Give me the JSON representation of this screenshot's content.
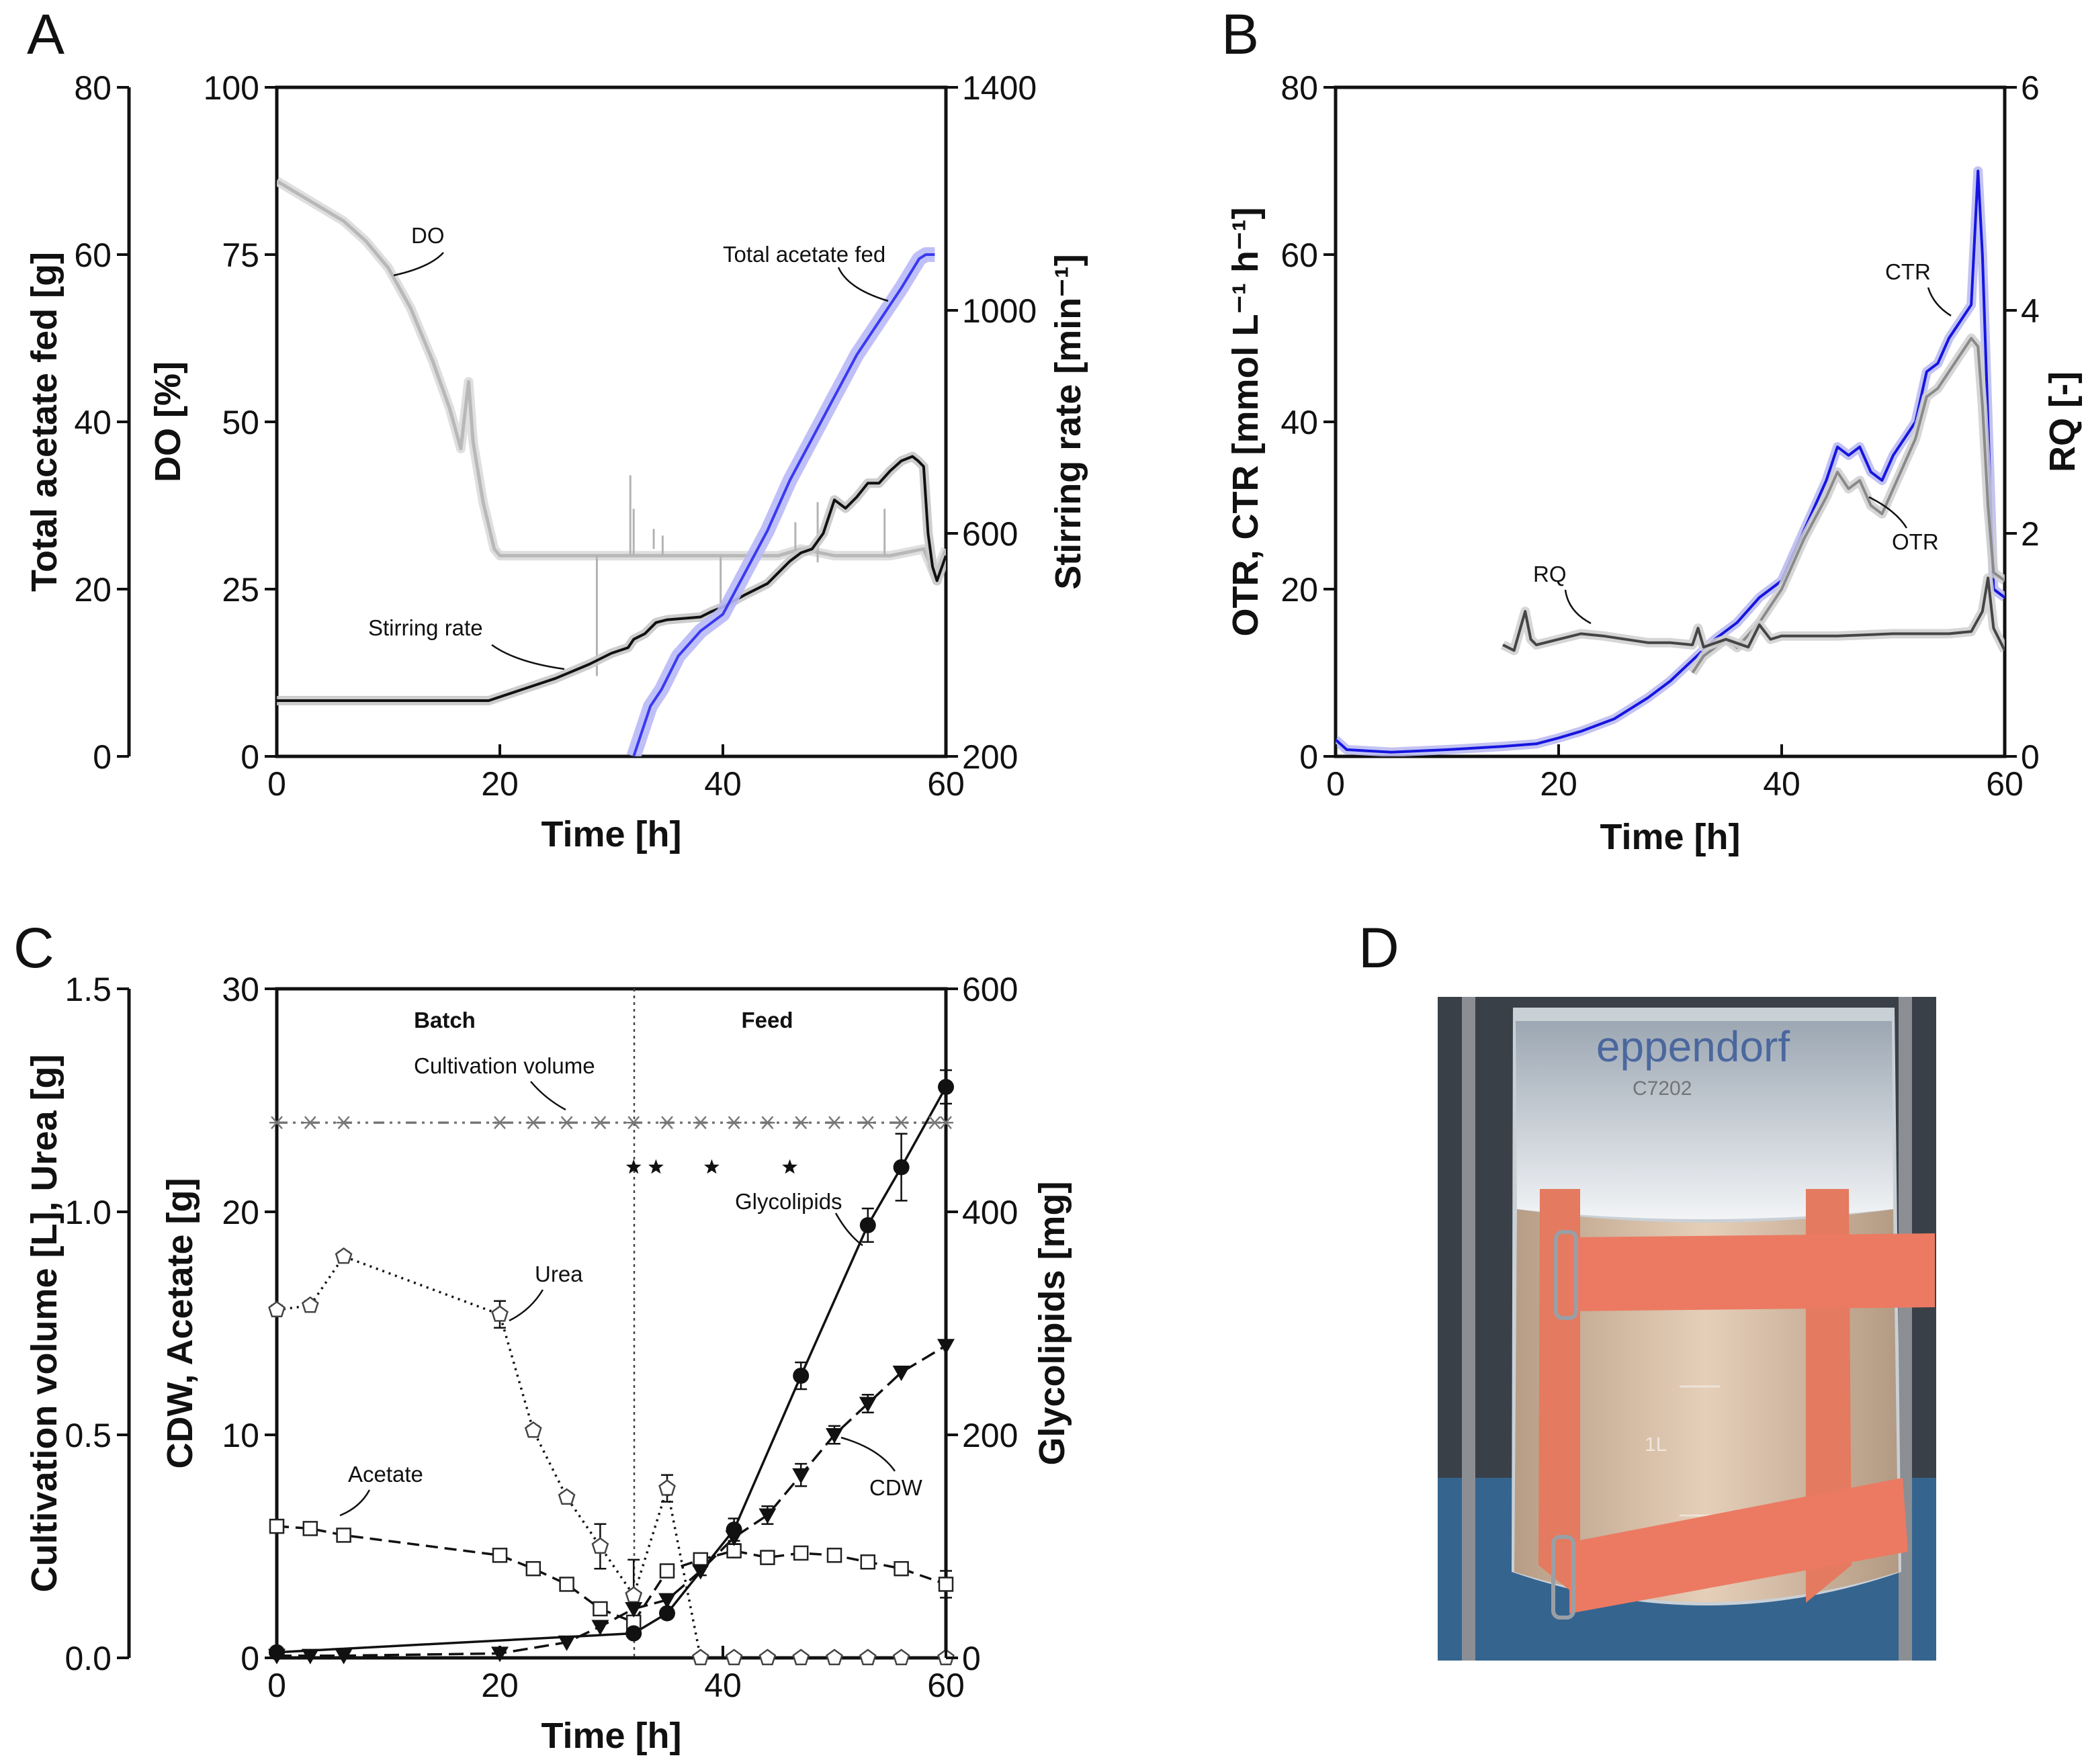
{
  "figure": {
    "letters": [
      "A",
      "B",
      "C",
      "D"
    ]
  },
  "chart_data": [
    {
      "id": "A",
      "type": "line",
      "xlabel": "Time [h]",
      "xlim": [
        0,
        60
      ],
      "xticks": [
        0,
        20,
        40,
        60
      ],
      "axes": [
        {
          "side": "outer-left",
          "label": "Total acetate fed [g]",
          "lim": [
            0,
            80
          ],
          "ticks": [
            0,
            20,
            40,
            60,
            80
          ]
        },
        {
          "side": "left",
          "label": "DO [%]",
          "lim": [
            0,
            100
          ],
          "ticks": [
            0,
            25,
            50,
            75,
            100
          ]
        },
        {
          "side": "right",
          "label": "Stirring rate [min⁻¹]",
          "lim": [
            200,
            1400
          ],
          "ticks": [
            200,
            600,
            1000,
            1400
          ]
        }
      ],
      "series": [
        {
          "name": "DO",
          "axis": 1,
          "color": "#b8b8b8",
          "points": [
            [
              0,
              86
            ],
            [
              2,
              84
            ],
            [
              4,
              82
            ],
            [
              6,
              80
            ],
            [
              8,
              77
            ],
            [
              10,
              73
            ],
            [
              12,
              67
            ],
            [
              14,
              59
            ],
            [
              15.5,
              52
            ],
            [
              16.5,
              46
            ],
            [
              17.2,
              56
            ],
            [
              17.6,
              47
            ],
            [
              18.5,
              38
            ],
            [
              19.5,
              31
            ],
            [
              20,
              30
            ],
            [
              30,
              30
            ],
            [
              40,
              30
            ],
            [
              45,
              30
            ],
            [
              47,
              31
            ],
            [
              50,
              30
            ],
            [
              55,
              30
            ],
            [
              58,
              31
            ],
            [
              59,
              27
            ],
            [
              60,
              31
            ]
          ]
        },
        {
          "name": "Stirring rate",
          "axis": 2,
          "color": "#111111",
          "points": [
            [
              0,
              300
            ],
            [
              19,
              300
            ],
            [
              22,
              320
            ],
            [
              25,
              340
            ],
            [
              28,
              365
            ],
            [
              30,
              385
            ],
            [
              31.5,
              395
            ],
            [
              32,
              410
            ],
            [
              33,
              420
            ],
            [
              34,
              440
            ],
            [
              35,
              445
            ],
            [
              38,
              450
            ],
            [
              39,
              460
            ],
            [
              40,
              468
            ],
            [
              42,
              490
            ],
            [
              44,
              510
            ],
            [
              45,
              530
            ],
            [
              46,
              550
            ],
            [
              47,
              565
            ],
            [
              48,
              572
            ],
            [
              49,
              600
            ],
            [
              50,
              660
            ],
            [
              51,
              645
            ],
            [
              52,
              665
            ],
            [
              53,
              690
            ],
            [
              54,
              690
            ],
            [
              55,
              712
            ],
            [
              56,
              730
            ],
            [
              57,
              738
            ],
            [
              57.5,
              730
            ],
            [
              58,
              720
            ],
            [
              58.4,
              600
            ],
            [
              58.8,
              540
            ],
            [
              59.2,
              515
            ],
            [
              60,
              560
            ]
          ]
        },
        {
          "name": "Total acetate fed",
          "axis": 0,
          "color": "#3a3af0",
          "points": [
            [
              32,
              0
            ],
            [
              33.5,
              6
            ],
            [
              34.5,
              8
            ],
            [
              36,
              12
            ],
            [
              38,
              15
            ],
            [
              40,
              17
            ],
            [
              42,
              22
            ],
            [
              44,
              27
            ],
            [
              46,
              33
            ],
            [
              48,
              38
            ],
            [
              50,
              43
            ],
            [
              52,
              48
            ],
            [
              54,
              52
            ],
            [
              56,
              56
            ],
            [
              57.6,
              59.5
            ],
            [
              58.2,
              60
            ],
            [
              59,
              60
            ]
          ]
        }
      ],
      "annotations": [
        "DO",
        "Total acetate fed",
        "Stirring rate"
      ]
    },
    {
      "id": "B",
      "type": "line",
      "xlabel": "Time [h]",
      "xlim": [
        0,
        60
      ],
      "xticks": [
        0,
        20,
        40,
        60
      ],
      "axes": [
        {
          "side": "left",
          "label": "OTR, CTR [mmol L⁻¹ h⁻¹]",
          "lim": [
            0,
            80
          ],
          "ticks": [
            0,
            20,
            40,
            60,
            80
          ]
        },
        {
          "side": "right",
          "label": "RQ [-]",
          "lim": [
            0,
            6
          ],
          "ticks": [
            0,
            2,
            4,
            6
          ]
        }
      ],
      "series": [
        {
          "name": "CTR",
          "axis": 0,
          "color": "#1515e0",
          "points": [
            [
              0,
              2
            ],
            [
              1,
              0.8
            ],
            [
              5,
              0.5
            ],
            [
              10,
              0.8
            ],
            [
              15,
              1.2
            ],
            [
              18,
              1.5
            ],
            [
              20,
              2.2
            ],
            [
              22,
              3
            ],
            [
              25,
              4.5
            ],
            [
              28,
              7
            ],
            [
              30,
              9
            ],
            [
              32,
              11.5
            ],
            [
              34,
              14
            ],
            [
              36,
              16
            ],
            [
              38,
              19
            ],
            [
              40,
              21
            ],
            [
              42,
              27
            ],
            [
              44,
              33
            ],
            [
              45,
              37
            ],
            [
              46,
              36
            ],
            [
              47,
              37
            ],
            [
              48,
              34
            ],
            [
              49,
              33
            ],
            [
              50,
              36
            ],
            [
              52,
              40
            ],
            [
              53,
              46
            ],
            [
              54,
              47
            ],
            [
              55,
              50
            ],
            [
              56,
              52
            ],
            [
              57,
              54
            ],
            [
              57.6,
              70
            ],
            [
              58,
              60
            ],
            [
              58.5,
              40
            ],
            [
              59,
              20
            ],
            [
              60,
              19
            ]
          ]
        },
        {
          "name": "OTR",
          "axis": 0,
          "color": "#8a8a8a",
          "points": [
            [
              32,
              10
            ],
            [
              33,
              12
            ],
            [
              34,
              13
            ],
            [
              35,
              14
            ],
            [
              36,
              13
            ],
            [
              38,
              16
            ],
            [
              40,
              20
            ],
            [
              42,
              26
            ],
            [
              44,
              31
            ],
            [
              45,
              34
            ],
            [
              46,
              32
            ],
            [
              47,
              33
            ],
            [
              48,
              30
            ],
            [
              49,
              29
            ],
            [
              50,
              32
            ],
            [
              52,
              38
            ],
            [
              53,
              43
            ],
            [
              54,
              44
            ],
            [
              55,
              46
            ],
            [
              56,
              48
            ],
            [
              57,
              50
            ],
            [
              57.6,
              49
            ],
            [
              58,
              42
            ],
            [
              58.5,
              30
            ],
            [
              59,
              22
            ],
            [
              60,
              21
            ]
          ]
        },
        {
          "name": "RQ",
          "axis": 1,
          "color": "#454545",
          "points": [
            [
              15,
              1
            ],
            [
              16,
              0.95
            ],
            [
              17,
              1.3
            ],
            [
              17.5,
              1.05
            ],
            [
              18,
              1.0
            ],
            [
              20,
              1.05
            ],
            [
              22,
              1.1
            ],
            [
              24,
              1.08
            ],
            [
              26,
              1.05
            ],
            [
              28,
              1.02
            ],
            [
              30,
              1.02
            ],
            [
              32,
              1.0
            ],
            [
              32.5,
              1.15
            ],
            [
              33,
              0.98
            ],
            [
              35,
              1.05
            ],
            [
              37,
              0.98
            ],
            [
              38,
              1.18
            ],
            [
              39,
              1.05
            ],
            [
              40,
              1.08
            ],
            [
              45,
              1.08
            ],
            [
              50,
              1.1
            ],
            [
              55,
              1.1
            ],
            [
              57,
              1.12
            ],
            [
              58,
              1.3
            ],
            [
              58.5,
              1.6
            ],
            [
              59,
              1.15
            ],
            [
              60,
              0.95
            ]
          ]
        }
      ],
      "annotations": [
        "CTR",
        "OTR",
        "RQ"
      ]
    },
    {
      "id": "C",
      "type": "scatter",
      "xlabel": "Time [h]",
      "xlim": [
        0,
        60
      ],
      "xticks": [
        0,
        20,
        40,
        60
      ],
      "axes": [
        {
          "side": "outer-left",
          "label": "Cultivation volume [L], Urea [g]",
          "lim": [
            0,
            1.5
          ],
          "ticks": [
            0.0,
            0.5,
            1.0,
            1.5
          ],
          "tick_labels": [
            "0.0",
            "0.5",
            "1.0",
            "1.5"
          ]
        },
        {
          "side": "left",
          "label": "CDW, Acetate [g]",
          "lim": [
            0,
            30
          ],
          "ticks": [
            0,
            10,
            20,
            30
          ]
        },
        {
          "side": "right",
          "label": "Glycolipids [mg]",
          "lim": [
            0,
            600
          ],
          "ticks": [
            0,
            200,
            400,
            600
          ]
        }
      ],
      "phases": [
        "Batch",
        "Feed"
      ],
      "phase_boundary_h": 32,
      "feed_markers_x": [
        32,
        34,
        39,
        46
      ],
      "feed_marker_value": 22,
      "series": [
        {
          "name": "Cultivation volume",
          "axis": 0,
          "marker": "asterisk",
          "x": [
            0,
            3,
            6,
            20,
            23,
            26,
            29,
            32,
            35,
            38,
            41,
            44,
            47,
            50,
            53,
            56,
            59,
            60
          ],
          "y": [
            1.2,
            1.2,
            1.2,
            1.2,
            1.2,
            1.2,
            1.2,
            1.2,
            1.2,
            1.2,
            1.2,
            1.2,
            1.2,
            1.2,
            1.2,
            1.2,
            1.2,
            1.2
          ]
        },
        {
          "name": "Urea",
          "axis": 0,
          "marker": "pentagon",
          "x": [
            0,
            3,
            6,
            20,
            23,
            26,
            29,
            32,
            35,
            38,
            41,
            44,
            47,
            50,
            53,
            56,
            60
          ],
          "y": [
            0.78,
            0.79,
            0.9,
            0.77,
            0.51,
            0.36,
            0.25,
            0.14,
            0.38,
            0,
            0,
            0,
            0,
            0,
            0,
            0,
            0
          ],
          "err": [
            0.01,
            0.01,
            0.01,
            0.03,
            0.01,
            0.01,
            0.05,
            0.08,
            0.03,
            0,
            0,
            0,
            0,
            0,
            0,
            0,
            0
          ]
        },
        {
          "name": "Acetate",
          "axis": 1,
          "marker": "square",
          "x": [
            0,
            3,
            6,
            20,
            23,
            26,
            29,
            32,
            35,
            38,
            41,
            44,
            47,
            50,
            53,
            56,
            60
          ],
          "y": [
            5.9,
            5.8,
            5.5,
            4.6,
            4.0,
            3.3,
            2.2,
            1.6,
            3.9,
            4.4,
            4.8,
            4.5,
            4.7,
            4.6,
            4.3,
            4.0,
            3.3
          ],
          "err": [
            0.2,
            0.2,
            0.2,
            0.2,
            0.2,
            0.2,
            0.2,
            0.2,
            0.2,
            0.2,
            0.3,
            0.3,
            0.2,
            0.2,
            0.2,
            0.3,
            0.6
          ]
        },
        {
          "name": "CDW",
          "axis": 1,
          "marker": "triangle-down",
          "x": [
            0,
            3,
            6,
            20,
            26,
            29,
            32,
            35,
            38,
            41,
            44,
            47,
            50,
            53,
            56,
            60
          ],
          "y": [
            0.1,
            0.1,
            0.1,
            0.2,
            0.7,
            1.4,
            2.2,
            2.6,
            3.9,
            5.4,
            6.4,
            8.2,
            10.0,
            11.4,
            12.8,
            14.0
          ],
          "err": [
            0,
            0,
            0,
            0,
            0,
            0,
            0,
            0,
            0.2,
            0.3,
            0.4,
            0.5,
            0.4,
            0.4,
            0,
            0
          ]
        },
        {
          "name": "Glycolipids",
          "axis": 2,
          "marker": "circle",
          "x": [
            0,
            32,
            35,
            41,
            47,
            53,
            56,
            60
          ],
          "y": [
            5,
            22,
            40,
            115,
            253,
            388,
            440,
            512
          ],
          "err": [
            0,
            0,
            0,
            10,
            12,
            15,
            30,
            15
          ]
        }
      ],
      "annotations": [
        "Cultivation volume",
        "Urea",
        "Acetate",
        "Glycolipids",
        "CDW"
      ]
    }
  ],
  "photo": {
    "id": "D",
    "description_marks": {
      "brand_text": "eppendorf",
      "vessel_marks": [
        "1L",
        "C7202"
      ]
    }
  }
}
